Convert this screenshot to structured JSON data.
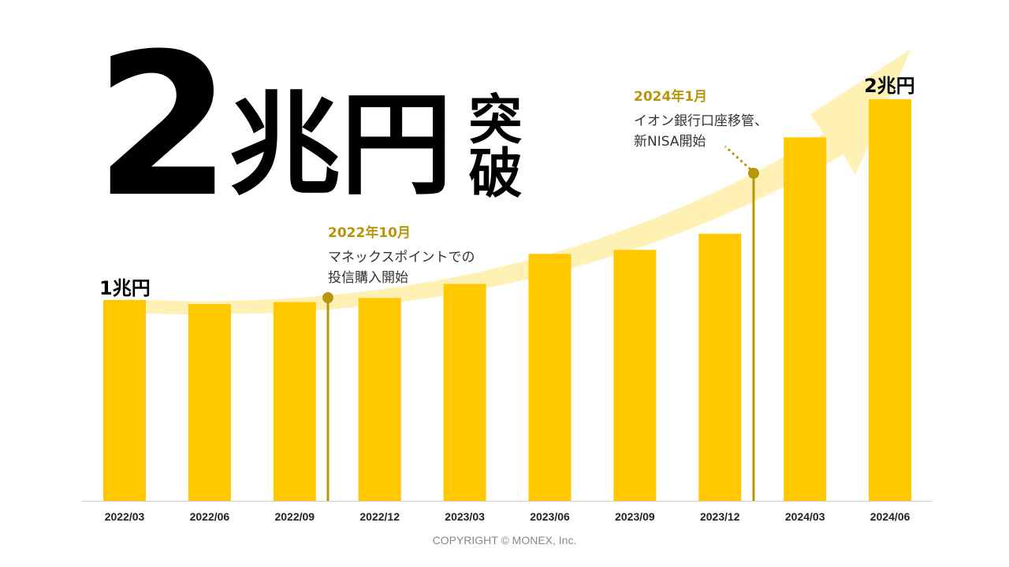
{
  "headline": {
    "number": "2",
    "unit": "兆円",
    "suffix": "突破"
  },
  "first_bar_label": "1兆円",
  "last_bar_label": "2兆円",
  "annotations": [
    {
      "date": "2022年10月",
      "desc_line1": "マネックスポイントでの",
      "desc_line2": "投信購入開始"
    },
    {
      "date": "2024年1月",
      "desc_line1": "イオン銀行口座移管、",
      "desc_line2": "新NISA開始"
    }
  ],
  "copyright": "COPYRIGHT  © MONEX, Inc.",
  "colors": {
    "bar": "#FFC800",
    "arrow": "#FFF0B3",
    "marker": "#B8960C",
    "axis": "#D0D0D0"
  },
  "chart_data": {
    "type": "bar",
    "categories": [
      "2022/03",
      "2022/06",
      "2022/09",
      "2022/12",
      "2023/03",
      "2023/06",
      "2023/09",
      "2023/12",
      "2024/03",
      "2024/06"
    ],
    "values": [
      1.0,
      0.98,
      0.99,
      1.01,
      1.08,
      1.23,
      1.25,
      1.33,
      1.81,
      2.0
    ],
    "ylim": [
      0,
      2.0
    ],
    "unit": "兆円",
    "grid": false,
    "legend": "none",
    "events": [
      {
        "after_category": "2022/09",
        "label_index": 0
      },
      {
        "after_category": "2023/12",
        "label_index": 1
      }
    ]
  }
}
